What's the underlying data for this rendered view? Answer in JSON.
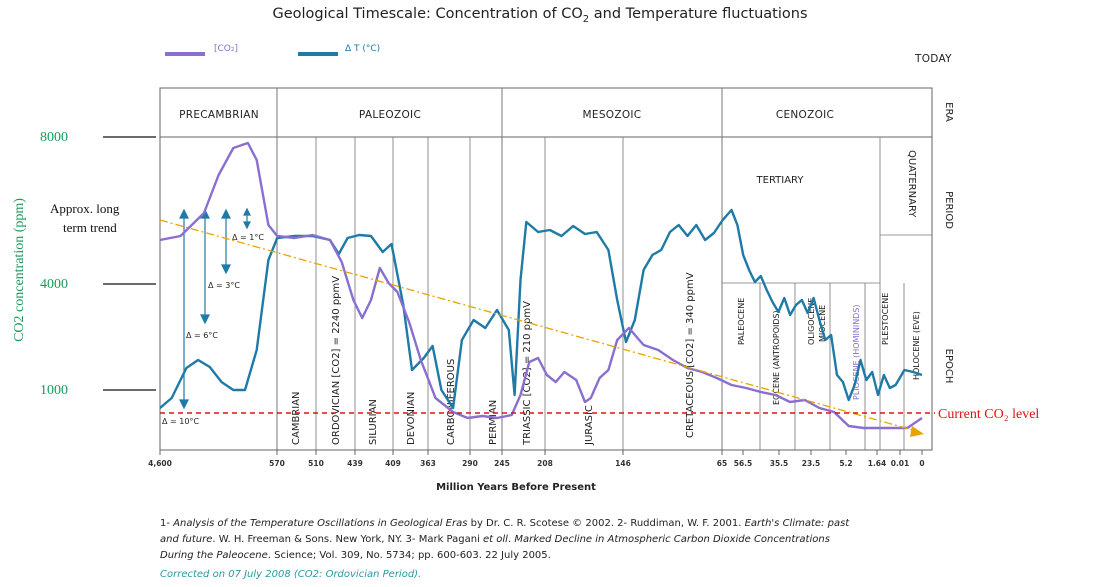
{
  "chart_data": {
    "type": "line",
    "title_pre": "Geological Timescale: Concentration of CO",
    "title_sub": "2",
    "title_post": " and Temperature fluctuations",
    "xlabel": "Million Years Before Present",
    "ylabel": "CO2 concentration (ppm)",
    "y_ticks": [
      "8000",
      "4000",
      "1000"
    ],
    "x_ticks": [
      "4,600",
      "570",
      "510",
      "439",
      "409",
      "363",
      "290",
      "245",
      "208",
      "146",
      "65",
      "56.5",
      "35.5",
      "23.5",
      "5.2",
      "1.64",
      "0.01",
      "0"
    ],
    "today": "TODAY",
    "legend": {
      "co2": "[CO₂]",
      "temp": "Δ T (°C)"
    },
    "row_labels": [
      "ERA",
      "PERIOD",
      "EPOCH"
    ],
    "eras": [
      "PRECAMBRIAN",
      "PALEOZOIC",
      "MESOZOIC",
      "CENOZOIC"
    ],
    "periods": [
      "CAMBRIAN",
      "ORDOVICIAN [CO2] = 2240 ppmV",
      "SILURIAN",
      "DEVONIAN",
      "CARBONIFEROUS",
      "PERMIAN",
      "TRIASSIC [CO2] = 210 ppmV",
      "JURASIC",
      "CRETACEOUS [CO2] = 340 ppmV",
      "TERTIARY",
      "QUATERNARY"
    ],
    "epochs": [
      "PALEOCENE",
      "EOCENE (ANTROPOIDS)",
      "OLIGOCENE",
      "MIOCENE",
      "PLIOCENE (HOMININDS)",
      "PLESTOCENE",
      "HOLOCENE (EVE)"
    ],
    "temp_scale": [
      "Δ = 1°C",
      "Δ = 3°C",
      "Δ = 6°C",
      "Δ = 10°C"
    ],
    "trend_label": [
      "Approx. long",
      "term trend"
    ],
    "current_label": "Current CO₂ level",
    "series": [
      {
        "name": "[CO₂]",
        "color": "#8a6fd0",
        "points": [
          [
            0,
            240
          ],
          [
            0.7,
            236
          ],
          [
            1.5,
            213
          ],
          [
            2,
            175
          ],
          [
            2.5,
            148
          ],
          [
            3,
            143
          ],
          [
            3.3,
            160
          ],
          [
            3.7,
            225
          ],
          [
            4,
            236
          ],
          [
            4.6,
            238
          ],
          [
            5.2,
            235
          ],
          [
            5.8,
            240
          ],
          [
            6.2,
            262
          ],
          [
            6.6,
            300
          ],
          [
            6.9,
            318
          ],
          [
            7.2,
            300
          ],
          [
            7.5,
            268
          ],
          [
            7.8,
            283
          ],
          [
            8.1,
            292
          ],
          [
            8.5,
            322
          ],
          [
            8.9,
            360
          ],
          [
            9.4,
            398
          ],
          [
            10,
            412
          ],
          [
            10.5,
            418
          ],
          [
            11,
            416
          ],
          [
            11.5,
            418
          ],
          [
            12,
            415
          ],
          [
            12.3,
            395
          ],
          [
            12.6,
            362
          ],
          [
            12.9,
            358
          ],
          [
            13.2,
            375
          ],
          [
            13.5,
            382
          ],
          [
            13.8,
            372
          ],
          [
            14.2,
            380
          ],
          [
            14.5,
            402
          ],
          [
            14.7,
            398
          ],
          [
            15,
            378
          ],
          [
            15.3,
            370
          ],
          [
            15.6,
            340
          ],
          [
            16,
            328
          ],
          [
            16.5,
            345
          ],
          [
            17,
            350
          ],
          [
            17.5,
            360
          ],
          [
            18,
            368
          ],
          [
            18.5,
            372
          ],
          [
            19,
            378
          ],
          [
            19.5,
            385
          ],
          [
            20,
            388
          ],
          [
            20.5,
            392
          ],
          [
            21,
            395
          ],
          [
            21.5,
            402
          ],
          [
            22,
            400
          ],
          [
            22.5,
            408
          ],
          [
            23,
            412
          ],
          [
            23.5,
            426
          ],
          [
            24,
            428
          ],
          [
            24.5,
            428
          ],
          [
            25,
            428
          ],
          [
            25.5,
            428
          ],
          [
            26,
            418
          ]
        ]
      },
      {
        "name": "Δ T (°C)",
        "color": "#1f7aa6",
        "points": [
          [
            0,
            408
          ],
          [
            0.4,
            398
          ],
          [
            0.9,
            368
          ],
          [
            1.3,
            360
          ],
          [
            1.7,
            367
          ],
          [
            2.1,
            382
          ],
          [
            2.5,
            390
          ],
          [
            2.9,
            390
          ],
          [
            3.3,
            350
          ],
          [
            3.7,
            260
          ],
          [
            4,
            238
          ],
          [
            4.6,
            236
          ],
          [
            5.2,
            236
          ],
          [
            5.8,
            240
          ],
          [
            6.1,
            254
          ],
          [
            6.4,
            238
          ],
          [
            6.8,
            235
          ],
          [
            7.2,
            236
          ],
          [
            7.6,
            252
          ],
          [
            7.9,
            244
          ],
          [
            8.3,
            305
          ],
          [
            8.6,
            370
          ],
          [
            9,
            358
          ],
          [
            9.3,
            346
          ],
          [
            9.6,
            390
          ],
          [
            10,
            408
          ],
          [
            10.3,
            340
          ],
          [
            10.7,
            320
          ],
          [
            11.1,
            328
          ],
          [
            11.5,
            310
          ],
          [
            11.9,
            330
          ],
          [
            12.1,
            395
          ],
          [
            12.3,
            280
          ],
          [
            12.5,
            222
          ],
          [
            12.9,
            232
          ],
          [
            13.3,
            230
          ],
          [
            13.7,
            236
          ],
          [
            14.1,
            226
          ],
          [
            14.5,
            234
          ],
          [
            14.9,
            232
          ],
          [
            15.3,
            250
          ],
          [
            15.6,
            300
          ],
          [
            15.9,
            342
          ],
          [
            16.2,
            320
          ],
          [
            16.5,
            270
          ],
          [
            16.8,
            255
          ],
          [
            17.1,
            250
          ],
          [
            17.4,
            232
          ],
          [
            17.7,
            225
          ],
          [
            18,
            236
          ],
          [
            18.3,
            225
          ],
          [
            18.6,
            240
          ],
          [
            18.9,
            233
          ],
          [
            19.2,
            220
          ],
          [
            19.5,
            210
          ],
          [
            19.7,
            225
          ],
          [
            19.9,
            255
          ],
          [
            20.1,
            270
          ],
          [
            20.3,
            282
          ],
          [
            20.5,
            276
          ],
          [
            20.7,
            290
          ],
          [
            20.9,
            302
          ],
          [
            21.1,
            312
          ],
          [
            21.3,
            298
          ],
          [
            21.5,
            315
          ],
          [
            21.7,
            305
          ],
          [
            21.9,
            300
          ],
          [
            22.1,
            313
          ],
          [
            22.3,
            298
          ],
          [
            22.5,
            320
          ],
          [
            22.7,
            340
          ],
          [
            22.9,
            335
          ],
          [
            23.1,
            375
          ],
          [
            23.3,
            382
          ],
          [
            23.5,
            400
          ],
          [
            23.7,
            385
          ],
          [
            23.9,
            360
          ],
          [
            24.1,
            380
          ],
          [
            24.3,
            372
          ],
          [
            24.5,
            395
          ],
          [
            24.7,
            375
          ],
          [
            24.9,
            388
          ],
          [
            25.1,
            385
          ],
          [
            25.4,
            370
          ],
          [
            25.7,
            372
          ],
          [
            26,
            375
          ]
        ]
      }
    ]
  },
  "footer": {
    "line1_a": "1- ",
    "line1_b": "Analysis of the Temperature Oscillations in Geological Eras",
    "line1_c": " by Dr. C. R. Scotese © 2002. 2- Ruddiman, W. F. 2001. ",
    "line1_d": "Earth's Climate: past",
    "line2_a": "and future",
    "line2_b": ". W. H. Freeman & Sons. New York, NY. 3- Mark Pagani ",
    "line2_c": "et oll",
    "line2_d": ". ",
    "line2_e": "Marked Decline in Atmospheric Carbon Dioxide Concentrations",
    "line3_a": "During the Paleocene",
    "line3_b": ". Science; Vol. 309, No. 5734; pp. 600-603. 22 July 2005.",
    "corrected": "Corrected on 07 July 2008 (CO2: Ordovician Period)."
  }
}
